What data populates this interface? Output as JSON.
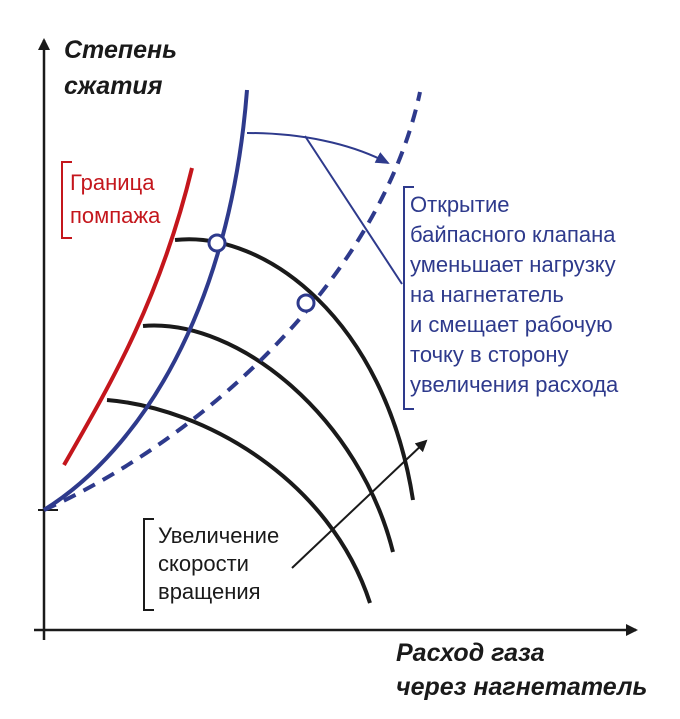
{
  "y_axis_title": [
    "Степень",
    "сжатия"
  ],
  "x_axis_title": [
    "Расход газа",
    "через нагнетатель"
  ],
  "surge_label": [
    "Граница",
    "помпажа"
  ],
  "bypass_label": [
    "Открытие",
    "байпасного клапана",
    "уменьшает нагрузку",
    "на нагнетатель",
    "и смещает рабочую",
    "точку в сторону",
    "увеличения расхода"
  ],
  "speed_label": [
    "Увеличение",
    "скорости",
    "вращения"
  ],
  "colors": {
    "surge_line": "#c4161c",
    "operating_line": "#2e3a8c",
    "speed_curves": "#1a1a1a",
    "axes": "#1a1a1a"
  }
}
